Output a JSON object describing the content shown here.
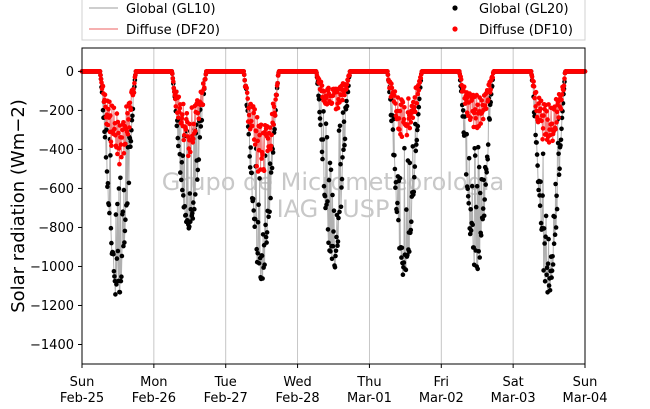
{
  "chart_data": {
    "type": "scatter",
    "ylabel": "Solar radiation (Wm−2)",
    "xlabel": "",
    "ylim": [
      -1500,
      120
    ],
    "yticks": [
      0,
      -200,
      -400,
      -600,
      -800,
      -1000,
      -1200,
      -1400
    ],
    "xlim_days": [
      0,
      7
    ],
    "x_ticks": [
      {
        "day": "Sun",
        "date": "Feb-25"
      },
      {
        "day": "Mon",
        "date": "Feb-26"
      },
      {
        "day": "Tue",
        "date": "Feb-27"
      },
      {
        "day": "Wed",
        "date": "Feb-28"
      },
      {
        "day": "Thu",
        "date": "Mar-01"
      },
      {
        "day": "Fri",
        "date": "Mar-02"
      },
      {
        "day": "Sat",
        "date": "Mar-03"
      },
      {
        "day": "Sun",
        "date": "Mar-04"
      }
    ],
    "grid": "vertical",
    "legend_position": "above plot",
    "watermark": [
      "Grupo de Micrometeorologia",
      "IAG - USP"
    ],
    "series": [
      {
        "name": "Global (GL10)",
        "style": "line",
        "color": "#b0b0b0"
      },
      {
        "name": "Diffuse (DF20)",
        "style": "line",
        "color": "#f08080"
      },
      {
        "name": "Global (GL20)",
        "style": "points",
        "color": "#000000"
      },
      {
        "name": "Diffuse (DF10)",
        "style": "points",
        "color": "#ff0000"
      }
    ],
    "daily_profiles": [
      {
        "date": "Feb-25",
        "sunrise_day": 0.25,
        "sunset_day": 0.75,
        "global_peak": -1180,
        "diffuse_peak": -480
      },
      {
        "date": "Feb-26",
        "sunrise_day": 1.25,
        "sunset_day": 1.73,
        "global_peak": -840,
        "diffuse_peak": -440
      },
      {
        "date": "Feb-27",
        "sunrise_day": 2.25,
        "sunset_day": 2.74,
        "global_peak": -1090,
        "diffuse_peak": -560
      },
      {
        "date": "Feb-28",
        "sunrise_day": 3.26,
        "sunset_day": 3.73,
        "global_peak": -1040,
        "diffuse_peak": -220
      },
      {
        "date": "Mar-01",
        "sunrise_day": 4.25,
        "sunset_day": 4.73,
        "global_peak": -1070,
        "diffuse_peak": -350
      },
      {
        "date": "Mar-02",
        "sunrise_day": 5.25,
        "sunset_day": 5.73,
        "global_peak": -1060,
        "diffuse_peak": -300
      },
      {
        "date": "Mar-03",
        "sunrise_day": 6.25,
        "sunset_day": 6.73,
        "global_peak": -1160,
        "diffuse_peak": -400
      }
    ]
  }
}
